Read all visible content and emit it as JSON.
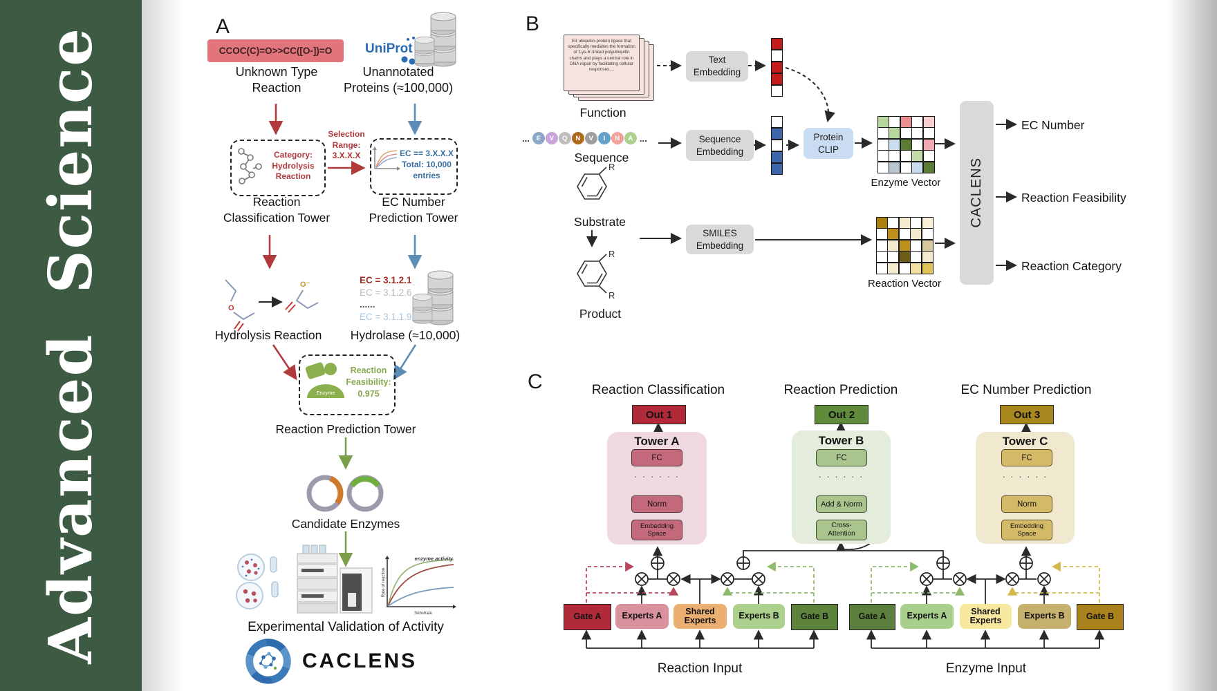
{
  "journal": {
    "sidebar_text": "Advanced Science",
    "sidebar_color": "#3d5a43"
  },
  "colors": {
    "accent_red": "#b13a3d",
    "accent_blue": "#5b8db8",
    "accent_green": "#7a9e49",
    "smiles_box": "#e2757b",
    "uniprot_blue": "#2b6cb0",
    "out1": "#b02a3a",
    "out2": "#5f8b3b",
    "out3": "#a9871f"
  },
  "panelA": {
    "label": "A",
    "smiles_reaction": "CCOC(C)=O>>CC([O-])=O",
    "unknown_reaction_label": "Unknown Type\nReaction",
    "uniprot_label": "UniProt",
    "unannotated_label": "Unannotated\nProteins (≈100,000)",
    "selection_range": "Selection\nRange:\n3.X.X.X",
    "category_text": "Category:\nHydrolysis\nReaction",
    "ec_box_text": "EC == 3.X.X.X\nTotal: 10,000\nentries",
    "classification_tower": "Reaction\nClassification Tower",
    "ec_tower": "EC Number\nPrediction Tower",
    "hydrolysis_label": "Hydrolysis Reaction",
    "ec_list": [
      {
        "text": "EC = 3.1.2.1",
        "color": "#9c2b21",
        "bold": true
      },
      {
        "text": "EC = 3.1.2.6",
        "color": "#bbbbbb",
        "bold": false
      },
      {
        "text": "......",
        "color": "#555555",
        "bold": true
      },
      {
        "text": "EC = 3.1.1.9",
        "color": "#a9c7e4",
        "bold": false
      }
    ],
    "hydrolase_label": "Hydrolase (≈10,000)",
    "enzyme_icon_label": "Enzyme",
    "feasibility_text": "Reaction\nFeasibility:\n0.975",
    "prediction_tower": "Reaction Prediction Tower",
    "candidate_label": "Candidate Enzymes",
    "validation_label": "Experimental Validation of Activity",
    "logo_text": "CACLENS",
    "activity_graph": {
      "curve_label": "enzyme activity",
      "ylabel": "Rate of reaction",
      "xlabel": "Substrate"
    }
  },
  "panelB": {
    "label": "B",
    "function_card_text": "E3 ubiquitin-protein ligase that specifically mediates the formation of 'Lys-6'-linked polyubiquitin chains and plays a central role in DNA repair by facilitating cellular responses....",
    "function_label": "Function",
    "ellipsis": "...",
    "residues": [
      {
        "letter": "E",
        "color": "#8ba6c7"
      },
      {
        "letter": "V",
        "color": "#c9a3dd"
      },
      {
        "letter": "Q",
        "color": "#bdbdbd"
      },
      {
        "letter": "N",
        "color": "#b06a1e"
      },
      {
        "letter": "V",
        "color": "#9e9e9e"
      },
      {
        "letter": "I",
        "color": "#64a0c8"
      },
      {
        "letter": "N",
        "color": "#f0a29b"
      },
      {
        "letter": "A",
        "color": "#aed191"
      }
    ],
    "sequence_label": "Sequence",
    "substrate_label": "Substrate",
    "product_label": "Product",
    "text_embedding": "Text\nEmbedding",
    "sequence_embedding": "Sequence\nEmbedding",
    "smiles_embedding": "SMILES\nEmbedding",
    "protein_clip": "Protein\nCLIP",
    "text_vector_cells": [
      "#c21d1d",
      "#ffffff",
      "#c21d1d",
      "#c21d1d",
      "#ffffff"
    ],
    "seq_vector_cells": [
      "#ffffff",
      "#3f66a9",
      "#ffffff",
      "#3f66a9",
      "#3f66a9"
    ],
    "enzyme_vector": {
      "label": "Enzyme Vector",
      "cells": [
        "#b7d79c",
        "#ffffff",
        "#e98f90",
        "#ffffff",
        "#f6cdd1",
        "#ffffff",
        "#b7d79c",
        "#ffffff",
        "#ffffff",
        "#ffffff",
        "#ffffff",
        "#ccdff1",
        "#5c7c34",
        "#ffffff",
        "#f2a9b1",
        "#ffffff",
        "#ffffff",
        "#ffffff",
        "#c5dcaa",
        "#ffffff",
        "#ffffff",
        "#b9c6d2",
        "#ffffff",
        "#c9dcef",
        "#5c7c34"
      ]
    },
    "reaction_vector": {
      "label": "Reaction Vector",
      "cells": [
        "#a97f10",
        "#ffffff",
        "#f3ead0",
        "#ffffff",
        "#f8f1d8",
        "#ffffff",
        "#bd8f1c",
        "#ffffff",
        "#f3ead0",
        "#ffffff",
        "#ffffff",
        "#f3ead0",
        "#bd8f1c",
        "#ffffff",
        "#d6c8a0",
        "#ffffff",
        "#ffffff",
        "#6b5c16",
        "#ffffff",
        "#f3ead0",
        "#ffffff",
        "#f3ead0",
        "#ffffff",
        "#f0e0a2",
        "#dfc356"
      ]
    },
    "caclens_bar": "CACLENS",
    "outputs": {
      "ec": "EC Number",
      "feasibility": "Reaction Feasibility",
      "category": "Reaction Category"
    }
  },
  "panelC": {
    "label": "C",
    "titles": {
      "classification": "Reaction Classification",
      "prediction": "Reaction Prediction",
      "ec": "EC Number Prediction"
    },
    "outs": {
      "a": "Out 1",
      "b": "Out 2",
      "c": "Out 3"
    },
    "towers": {
      "a": {
        "name": "Tower A",
        "fc": "FC",
        "dots": "· · · · · ·",
        "norm": "Norm",
        "embed": "Embedding\nSpace"
      },
      "b": {
        "name": "Tower B",
        "fc": "FC",
        "dots": "· · · · · ·",
        "addnorm": "Add & Norm",
        "cross": "Cross-\nAttention"
      },
      "c": {
        "name": "Tower C",
        "fc": "FC",
        "dots": "· · · · · ·",
        "norm": "Norm",
        "embed": "Embedding\nSpace"
      }
    },
    "moe_reaction": {
      "gate_a": "Gate A",
      "experts_a": "Experts A",
      "shared": "Shared\nExperts",
      "experts_b": "Experts B",
      "gate_b": "Gate B",
      "input_label": "Reaction Input"
    },
    "moe_enzyme": {
      "gate_a": "Gate A",
      "experts_a": "Experts A",
      "shared": "Shared\nExperts",
      "experts_b": "Experts B",
      "gate_b": "Gate B",
      "input_label": "Enzyme Input"
    }
  }
}
